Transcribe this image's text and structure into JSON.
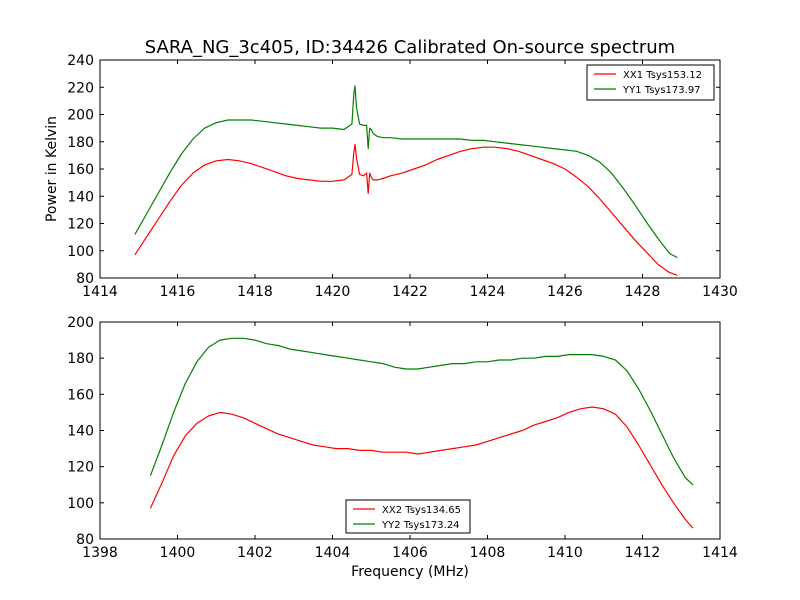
{
  "figure_title": "SARA_NG_3c405, ID:34426 Calibrated On-source spectrum",
  "colors": {
    "red": "#ff0000",
    "green": "#008000"
  },
  "chart_data": [
    {
      "type": "line",
      "title": "SARA_NG_3c405, ID:34426 Calibrated On-source spectrum",
      "xlabel": "",
      "ylabel": "Power in Kelvin",
      "xlim": [
        1414,
        1430
      ],
      "ylim": [
        80,
        240
      ],
      "xticks": [
        "1414",
        "1416",
        "1418",
        "1420",
        "1422",
        "1424",
        "1426",
        "1428",
        "1430"
      ],
      "yticks": [
        "80",
        "100",
        "120",
        "140",
        "160",
        "180",
        "200",
        "220",
        "240"
      ],
      "legend_position": "top-right",
      "grid": false,
      "series": [
        {
          "name": "XX1 Tsys153.12",
          "color": "#ff0000",
          "x": [
            1414.9,
            1415.2,
            1415.5,
            1415.8,
            1416.1,
            1416.4,
            1416.7,
            1417.0,
            1417.3,
            1417.6,
            1417.9,
            1418.2,
            1418.5,
            1418.8,
            1419.1,
            1419.4,
            1419.7,
            1420.0,
            1420.3,
            1420.5,
            1420.55,
            1420.58,
            1420.62,
            1420.7,
            1420.8,
            1420.88,
            1420.92,
            1420.96,
            1421.0,
            1421.05,
            1421.15,
            1421.3,
            1421.5,
            1421.8,
            1422.1,
            1422.4,
            1422.7,
            1423.0,
            1423.3,
            1423.6,
            1423.9,
            1424.2,
            1424.5,
            1424.8,
            1425.1,
            1425.4,
            1425.7,
            1426.0,
            1426.3,
            1426.6,
            1426.9,
            1427.2,
            1427.5,
            1427.8,
            1428.1,
            1428.4,
            1428.7,
            1428.9
          ],
          "y": [
            97,
            110,
            123,
            136,
            148,
            157,
            163,
            166,
            167,
            166,
            164,
            161,
            158,
            155,
            153,
            152,
            151,
            151,
            152,
            156,
            172,
            178,
            168,
            156,
            155,
            157,
            142,
            157,
            154,
            152,
            152,
            153,
            155,
            157,
            160,
            163,
            167,
            170,
            173,
            175,
            176,
            176,
            175,
            173,
            170,
            167,
            164,
            160,
            154,
            147,
            138,
            128,
            118,
            108,
            99,
            90,
            84,
            82
          ]
        },
        {
          "name": "YY1 Tsys173.97",
          "color": "#008000",
          "x": [
            1414.9,
            1415.2,
            1415.5,
            1415.8,
            1416.1,
            1416.4,
            1416.7,
            1417.0,
            1417.3,
            1417.6,
            1417.9,
            1418.2,
            1418.5,
            1418.8,
            1419.1,
            1419.4,
            1419.7,
            1420.0,
            1420.3,
            1420.5,
            1420.55,
            1420.58,
            1420.62,
            1420.7,
            1420.8,
            1420.88,
            1420.92,
            1420.96,
            1421.0,
            1421.05,
            1421.15,
            1421.3,
            1421.5,
            1421.8,
            1422.1,
            1422.4,
            1422.7,
            1423.0,
            1423.3,
            1423.6,
            1423.9,
            1424.2,
            1424.5,
            1424.8,
            1425.1,
            1425.4,
            1425.7,
            1426.0,
            1426.3,
            1426.6,
            1426.9,
            1427.2,
            1427.5,
            1427.8,
            1428.1,
            1428.4,
            1428.7,
            1428.9
          ],
          "y": [
            112,
            127,
            142,
            157,
            171,
            182,
            190,
            194,
            196,
            196,
            196,
            195,
            194,
            193,
            192,
            191,
            190,
            190,
            189,
            193,
            215,
            221,
            205,
            193,
            192,
            192,
            175,
            190,
            189,
            186,
            184,
            183,
            183,
            182,
            182,
            182,
            182,
            182,
            182,
            181,
            181,
            180,
            179,
            178,
            177,
            176,
            175,
            174,
            173,
            170,
            165,
            157,
            146,
            134,
            121,
            109,
            98,
            95
          ]
        }
      ]
    },
    {
      "type": "line",
      "title": "",
      "xlabel": "Frequency (MHz)",
      "ylabel": "",
      "xlim": [
        1398,
        1414
      ],
      "ylim": [
        80,
        200
      ],
      "xticks": [
        "1398",
        "1400",
        "1402",
        "1404",
        "1406",
        "1408",
        "1410",
        "1412",
        "1414"
      ],
      "yticks": [
        "80",
        "100",
        "120",
        "140",
        "160",
        "180",
        "200"
      ],
      "legend_position": "lower-center",
      "grid": false,
      "series": [
        {
          "name": "XX2 Tsys134.65",
          "color": "#ff0000",
          "x": [
            1399.3,
            1399.6,
            1399.9,
            1400.2,
            1400.5,
            1400.8,
            1401.1,
            1401.4,
            1401.7,
            1402.0,
            1402.3,
            1402.6,
            1402.9,
            1403.2,
            1403.5,
            1403.8,
            1404.1,
            1404.4,
            1404.7,
            1405.0,
            1405.3,
            1405.6,
            1405.9,
            1406.2,
            1406.5,
            1406.8,
            1407.1,
            1407.4,
            1407.7,
            1408.0,
            1408.3,
            1408.6,
            1408.9,
            1409.2,
            1409.5,
            1409.8,
            1410.1,
            1410.4,
            1410.7,
            1411.0,
            1411.3,
            1411.6,
            1411.9,
            1412.2,
            1412.5,
            1412.8,
            1413.1,
            1413.3
          ],
          "y": [
            97,
            111,
            126,
            137,
            144,
            148,
            150,
            149,
            147,
            144,
            141,
            138,
            136,
            134,
            132,
            131,
            130,
            130,
            129,
            129,
            128,
            128,
            128,
            127,
            128,
            129,
            130,
            131,
            132,
            134,
            136,
            138,
            140,
            143,
            145,
            147,
            150,
            152,
            153,
            152,
            149,
            142,
            132,
            121,
            110,
            100,
            91,
            86
          ]
        },
        {
          "name": "YY2 Tsys173.24",
          "color": "#008000",
          "x": [
            1399.3,
            1399.6,
            1399.9,
            1400.2,
            1400.5,
            1400.8,
            1401.1,
            1401.4,
            1401.7,
            1402.0,
            1402.3,
            1402.6,
            1402.9,
            1403.2,
            1403.5,
            1403.8,
            1404.1,
            1404.4,
            1404.7,
            1405.0,
            1405.3,
            1405.6,
            1405.9,
            1406.2,
            1406.5,
            1406.8,
            1407.1,
            1407.4,
            1407.7,
            1408.0,
            1408.3,
            1408.6,
            1408.9,
            1409.2,
            1409.5,
            1409.8,
            1410.1,
            1410.4,
            1410.7,
            1411.0,
            1411.3,
            1411.6,
            1411.9,
            1412.2,
            1412.5,
            1412.8,
            1413.1,
            1413.3
          ],
          "y": [
            115,
            132,
            150,
            166,
            178,
            186,
            190,
            191,
            191,
            190,
            188,
            187,
            185,
            184,
            183,
            182,
            181,
            180,
            179,
            178,
            177,
            175,
            174,
            174,
            175,
            176,
            177,
            177,
            178,
            178,
            179,
            179,
            180,
            180,
            181,
            181,
            182,
            182,
            182,
            181,
            179,
            173,
            163,
            151,
            138,
            125,
            114,
            110
          ]
        }
      ]
    }
  ]
}
